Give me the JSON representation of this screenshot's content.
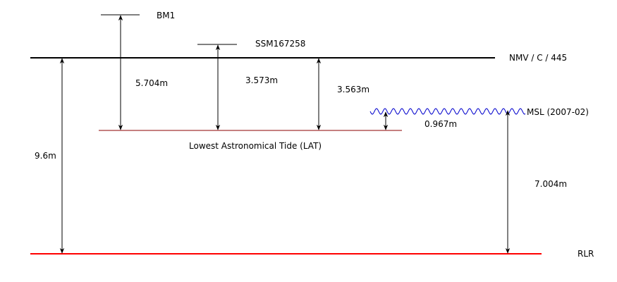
{
  "levels": {
    "bm1": "BM1",
    "ssm": "SSM167258",
    "nmv": "NMV / C / 445",
    "msl": "MSL (2007-02)",
    "lat": "Lowest Astronomical Tide (LAT)",
    "rlr": "RLR"
  },
  "measurements": {
    "bm1_to_lat": "5.704m",
    "ssm_to_lat": "3.573m",
    "nmv_to_lat": "3.563m",
    "msl_to_lat": "0.967m",
    "nmv_to_rlr": "9.6m",
    "msl_to_rlr": "7.004m"
  },
  "colors": {
    "line": "#000000",
    "lat_line": "#8b0000",
    "rlr_line": "#ff0000",
    "msl_wave": "#0000cc"
  }
}
